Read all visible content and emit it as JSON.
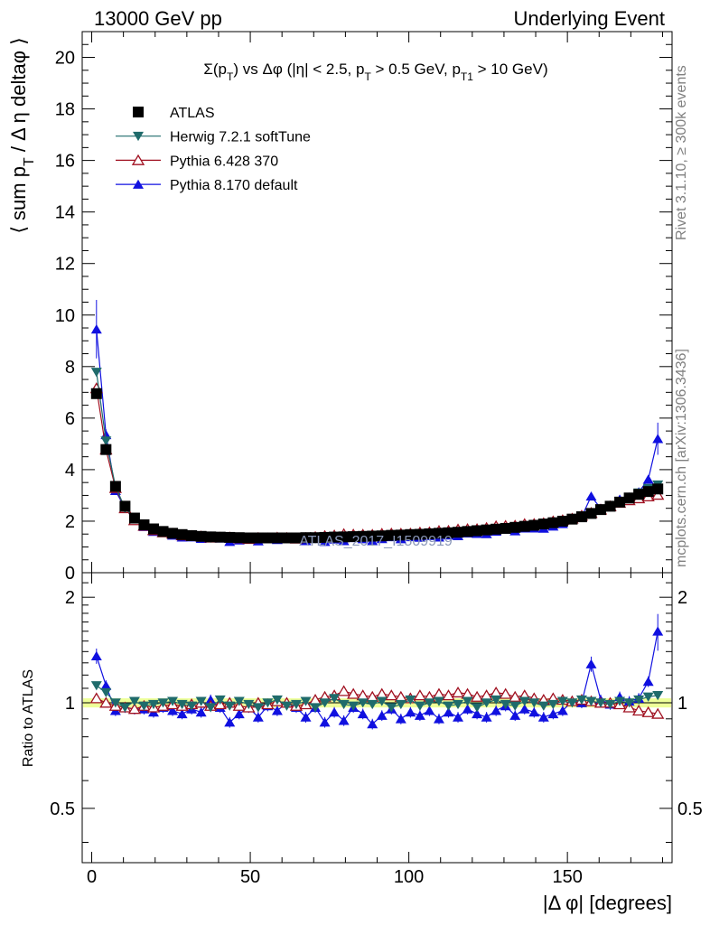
{
  "header": {
    "left": "13000 GeV pp",
    "right": "Underlying Event"
  },
  "side_labels": {
    "rivet": "Rivet 3.1.10, ≥ 300k events",
    "mcplots": "mcplots.cern.ch [arXiv:1306.3436]"
  },
  "chart_data": {
    "type": "scatter",
    "title": "Σ(p_T) vs Δφ (|η| < 2.5, p_T > 0.5 GeV, p_T1 > 10 GeV)",
    "watermark": "ATLAS_2017_I1509919",
    "xlabel": "|Δ φ| [degrees]",
    "ylabel": "⟨ sum p_T / Δη deltaφ ⟩",
    "ratio_ylabel": "Ratio to ATLAS",
    "xlim": [
      -3,
      183
    ],
    "ylim": [
      0,
      21
    ],
    "ratio_ylim": [
      0.35,
      2.35
    ],
    "ratio_log": true,
    "xticks": [
      "0",
      "50",
      "100",
      "150"
    ],
    "yticks": [
      "0",
      "2",
      "4",
      "6",
      "8",
      "10",
      "12",
      "14",
      "16",
      "18",
      "20"
    ],
    "ratio_yticks": [
      "0.5",
      "1",
      "2"
    ],
    "legend_position": "top-left",
    "x": [
      1.5,
      4.5,
      7.5,
      10.5,
      13.5,
      16.5,
      19.5,
      22.5,
      25.5,
      28.5,
      31.5,
      34.5,
      37.5,
      40.5,
      43.5,
      46.5,
      49.5,
      52.5,
      55.5,
      58.5,
      61.5,
      64.5,
      67.5,
      70.5,
      73.5,
      76.5,
      79.5,
      82.5,
      85.5,
      88.5,
      91.5,
      94.5,
      97.5,
      100.5,
      103.5,
      106.5,
      109.5,
      112.5,
      115.5,
      118.5,
      121.5,
      124.5,
      127.5,
      130.5,
      133.5,
      136.5,
      139.5,
      142.5,
      145.5,
      148.5,
      151.5,
      154.5,
      157.5,
      160.5,
      163.5,
      166.5,
      169.5,
      172.5,
      175.5,
      178.5
    ],
    "series": [
      {
        "name": "ATLAS",
        "color": "#000000",
        "marker": "square",
        "values": [
          6.95,
          4.78,
          3.35,
          2.58,
          2.12,
          1.86,
          1.7,
          1.6,
          1.53,
          1.48,
          1.44,
          1.41,
          1.39,
          1.38,
          1.37,
          1.36,
          1.35,
          1.35,
          1.35,
          1.35,
          1.35,
          1.35,
          1.36,
          1.36,
          1.37,
          1.38,
          1.39,
          1.4,
          1.41,
          1.42,
          1.43,
          1.45,
          1.46,
          1.48,
          1.49,
          1.51,
          1.53,
          1.55,
          1.57,
          1.6,
          1.63,
          1.66,
          1.69,
          1.72,
          1.76,
          1.8,
          1.84,
          1.89,
          1.94,
          2.0,
          2.08,
          2.17,
          2.3,
          2.45,
          2.58,
          2.74,
          2.9,
          3.04,
          3.15,
          3.25
        ]
      },
      {
        "name": "Herwig 7.2.1 softTune",
        "color": "#1f6b6b",
        "marker": "triangle-down",
        "ratio": [
          1.12,
          1.07,
          1.0,
          0.97,
          1.01,
          0.98,
          0.99,
          1.0,
          1.01,
          0.99,
          0.98,
          1.01,
          0.97,
          1.02,
          0.98,
          1.01,
          0.99,
          0.97,
          1.0,
          1.02,
          0.98,
          0.99,
          1.01,
          0.97,
          1.0,
          1.03,
          0.99,
          0.98,
          1.0,
          0.99,
          1.01,
          0.97,
          0.99,
          1.02,
          0.98,
          1.0,
          1.01,
          0.98,
          0.99,
          1.01,
          0.97,
          1.0,
          1.02,
          0.99,
          0.98,
          1.01,
          1.0,
          0.98,
          0.99,
          1.01,
          1.0,
          1.02,
          1.01,
          1.0,
          0.99,
          1.01,
          1.0,
          1.02,
          1.04,
          1.05
        ]
      },
      {
        "name": "Pythia 6.428 370",
        "color": "#a01020",
        "marker": "triangle-up-open",
        "ratio": [
          1.03,
          1.0,
          0.98,
          0.97,
          0.96,
          0.98,
          0.97,
          0.98,
          0.99,
          0.98,
          0.99,
          1.0,
          0.98,
          0.99,
          1.0,
          0.98,
          0.97,
          1.0,
          0.99,
          1.01,
          1.0,
          0.98,
          0.99,
          1.02,
          1.04,
          1.05,
          1.08,
          1.06,
          1.05,
          1.04,
          1.06,
          1.05,
          1.04,
          1.03,
          1.05,
          1.04,
          1.06,
          1.05,
          1.07,
          1.06,
          1.04,
          1.05,
          1.07,
          1.06,
          1.04,
          1.05,
          1.03,
          1.02,
          1.03,
          1.02,
          1.01,
          1.02,
          1.01,
          1.0,
          1.0,
          0.99,
          0.97,
          0.95,
          0.94,
          0.93
        ]
      },
      {
        "name": "Pythia 8.170 default",
        "color": "#1010e0",
        "marker": "triangle-up",
        "ratio": [
          1.36,
          1.12,
          0.95,
          0.97,
          0.96,
          0.96,
          0.94,
          0.97,
          0.95,
          0.93,
          0.96,
          0.94,
          1.02,
          0.97,
          0.88,
          0.93,
          0.97,
          0.91,
          0.98,
          0.95,
          1.0,
          0.97,
          0.91,
          0.97,
          0.88,
          0.94,
          0.89,
          0.97,
          0.93,
          0.87,
          0.92,
          0.96,
          0.9,
          0.94,
          0.92,
          0.95,
          0.9,
          0.94,
          0.91,
          0.96,
          0.93,
          0.91,
          0.95,
          0.98,
          0.92,
          0.96,
          0.94,
          0.91,
          0.93,
          0.95,
          1.01,
          1.0,
          1.29,
          1.02,
          0.99,
          1.04,
          1.01,
          1.03,
          1.15,
          1.6
        ]
      }
    ]
  }
}
